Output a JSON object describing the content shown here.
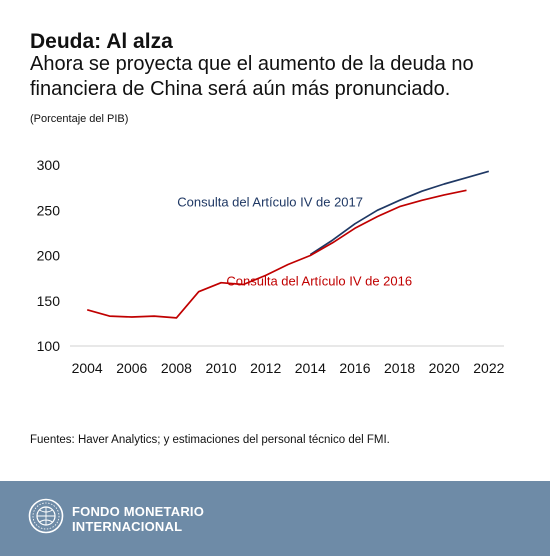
{
  "header": {
    "title": "Deuda: Al alza",
    "subtitle": "Ahora se proyecta que el aumento de la deuda no financiera de China será aún más pronunciado.",
    "unit_note": "(Porcentaje del PIB)"
  },
  "source": "Fuentes: Haver Analytics; y estimaciones del personal técnico del FMI.",
  "footer": {
    "org_line1": "FONDO MONETARIO",
    "org_line2": "INTERNACIONAL",
    "logo_icon": "imf-seal-icon",
    "background": "#6e8ba7"
  },
  "chart_data": {
    "type": "line",
    "title": "",
    "xlabel": "",
    "ylabel": "",
    "xlim": [
      2003.5,
      2022.5
    ],
    "ylim": [
      100,
      300
    ],
    "x_ticks": [
      2004,
      2006,
      2008,
      2010,
      2012,
      2014,
      2016,
      2018,
      2020,
      2022
    ],
    "y_ticks": [
      100,
      150,
      200,
      250,
      300
    ],
    "grid": false,
    "series": [
      {
        "name": "Consulta del Artículo IV de 2017",
        "color": "#1f3864",
        "x": [
          2014,
          2015,
          2016,
          2017,
          2018,
          2019,
          2020,
          2021,
          2022
        ],
        "y": [
          201,
          217,
          235,
          250,
          261,
          271,
          279,
          286,
          293
        ]
      },
      {
        "name": "Consulta del Artículo IV de 2016",
        "color": "#c00000",
        "x": [
          2004,
          2005,
          2006,
          2007,
          2008,
          2009,
          2010,
          2011,
          2012,
          2013,
          2014,
          2015,
          2016,
          2017,
          2018,
          2019,
          2020,
          2021
        ],
        "y": [
          140,
          133,
          132,
          133,
          131,
          160,
          170,
          168,
          178,
          190,
          200,
          214,
          230,
          243,
          254,
          261,
          267,
          272
        ]
      }
    ]
  }
}
